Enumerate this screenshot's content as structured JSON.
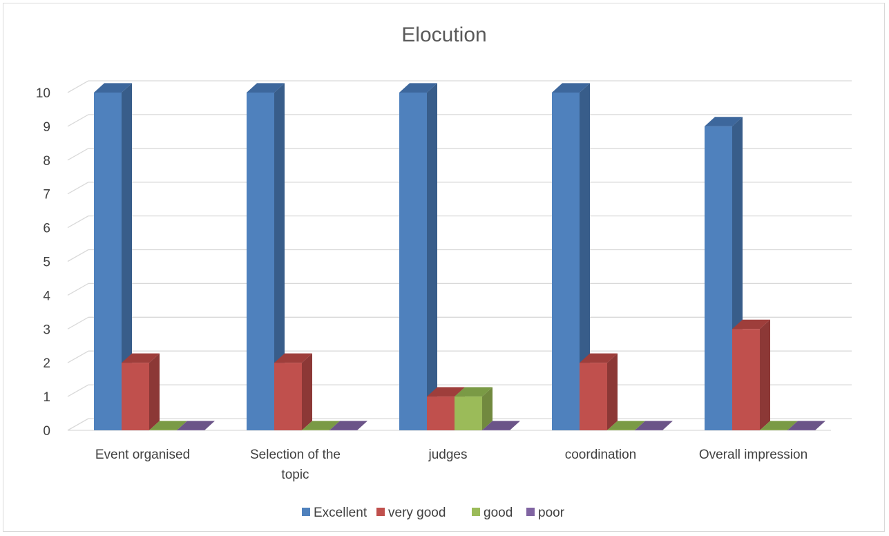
{
  "chart_data": {
    "type": "bar",
    "title": "Elocution",
    "xlabel": "",
    "ylabel": "",
    "ylim": [
      0,
      10
    ],
    "yticks": [
      "0",
      "1",
      "2",
      "3",
      "4",
      "5",
      "6",
      "7",
      "8",
      "9",
      "10"
    ],
    "categories": [
      [
        "Event organised"
      ],
      [
        "Selection of the",
        "topic"
      ],
      [
        "judges"
      ],
      [
        "coordination"
      ],
      [
        "Overall impression"
      ]
    ],
    "series": [
      {
        "name": "Excellent",
        "values": [
          10,
          10,
          10,
          10,
          9
        ],
        "color": "#4f81bd",
        "side": "#385d8a",
        "top": "#3d679c"
      },
      {
        "name": "very good",
        "values": [
          2,
          2,
          1,
          2,
          3
        ],
        "color": "#c0504d",
        "side": "#8c3836",
        "top": "#9e3e3b"
      },
      {
        "name": "good",
        "values": [
          0,
          0,
          1,
          0,
          0
        ],
        "color": "#9bbb59",
        "side": "#71893f",
        "top": "#7a9a45"
      },
      {
        "name": "poor",
        "values": [
          0,
          0,
          0,
          0,
          0
        ],
        "color": "#8064a2",
        "side": "#5c4876",
        "top": "#6b5488"
      }
    ],
    "grid": true,
    "legend": "bottom"
  }
}
